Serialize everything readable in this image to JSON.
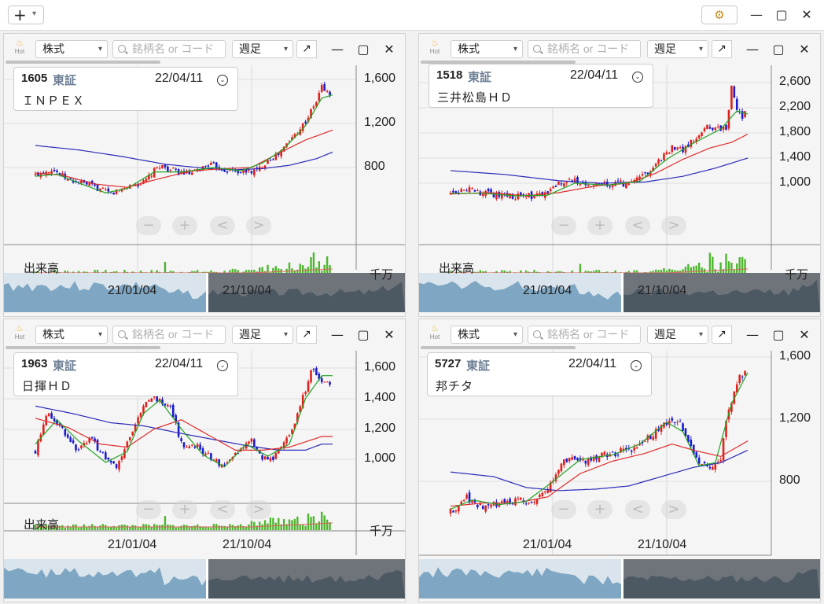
{
  "toolbar": {
    "add_label": "+",
    "window_controls": [
      "minimize-icon",
      "maximize-icon",
      "close-icon"
    ]
  },
  "colors": {
    "up": "#e0201c",
    "down": "#1a1ad0",
    "ma_short": "#22a322",
    "ma_mid": "#e02c2c",
    "ma_long": "#2b2bb8",
    "volume": "#4db62e",
    "minimap_left": "#7fa6c2",
    "minimap_right": "#4c5862"
  },
  "panels": [
    {
      "code": "1605",
      "exchange": "東証",
      "date": "22/04/11",
      "name": "ＩＮＰＥＸ",
      "market": "株式",
      "search_placeholder": "銘柄名 or コード",
      "period": "週足",
      "hot_label": "Hot",
      "y_ticks": [
        "1,600",
        "1,200",
        "800"
      ],
      "x_ticks": [
        "21/01/04",
        "21/10/04"
      ],
      "volume_label": "出来高",
      "volume_unit": "千万",
      "nav": [
        "−",
        "+",
        "<",
        ">"
      ]
    },
    {
      "code": "1518",
      "exchange": "東証",
      "date": "22/04/11",
      "name": "三井松島ＨＤ",
      "market": "株式",
      "search_placeholder": "銘柄名 or コード",
      "period": "週足",
      "hot_label": "Hot",
      "y_ticks": [
        "2,600",
        "2,200",
        "1,800",
        "1,400",
        "1,000"
      ],
      "x_ticks": [
        "21/01/04",
        "21/10/04"
      ],
      "volume_label": "出来高",
      "volume_unit": "千万",
      "nav": [
        "−",
        "+",
        "<",
        ">"
      ]
    },
    {
      "code": "1963",
      "exchange": "東証",
      "date": "22/04/11",
      "name": "日揮ＨＤ",
      "market": "株式",
      "search_placeholder": "銘柄名 or コード",
      "period": "週足",
      "hot_label": "Hot",
      "y_ticks": [
        "1,600",
        "1,400",
        "1,200",
        "1,000"
      ],
      "x_ticks": [
        "21/01/04",
        "21/10/04"
      ],
      "volume_label": "出来高",
      "volume_unit": "千万",
      "nav": [
        "−",
        "+",
        "<",
        ">"
      ]
    },
    {
      "code": "5727",
      "exchange": "東証",
      "date": "22/04/11",
      "name": "邦チタ",
      "market": "株式",
      "search_placeholder": "銘柄名 or コード",
      "period": "週足",
      "hot_label": "Hot",
      "y_ticks": [
        "1,600",
        "1,200",
        "800"
      ],
      "x_ticks": [
        "21/01/04",
        "21/10/04"
      ],
      "volume_label": "",
      "volume_unit": "",
      "nav": [
        "−",
        "+",
        "<",
        ">"
      ]
    }
  ],
  "chart_data": [
    {
      "type": "candlestick",
      "title": "1605 ＩＮＰＥＸ",
      "ylim": [
        500,
        1680
      ],
      "y_ticks": [
        800,
        1200,
        1600
      ],
      "x_ticks": [
        "21/01/04",
        "21/10/04"
      ],
      "close_path": [
        [
          0,
          730
        ],
        [
          6,
          790
        ],
        [
          12,
          690
        ],
        [
          20,
          640
        ],
        [
          28,
          560
        ],
        [
          34,
          630
        ],
        [
          40,
          660
        ],
        [
          46,
          820
        ],
        [
          52,
          760
        ],
        [
          58,
          740
        ],
        [
          64,
          830
        ],
        [
          70,
          780
        ],
        [
          76,
          760
        ],
        [
          82,
          770
        ],
        [
          86,
          870
        ],
        [
          90,
          920
        ],
        [
          95,
          1070
        ],
        [
          100,
          1220
        ],
        [
          104,
          1400
        ],
        [
          106,
          1540
        ],
        [
          108,
          1480
        ],
        [
          110,
          1450
        ]
      ],
      "ma_short_path": [
        [
          0,
          720
        ],
        [
          8,
          740
        ],
        [
          16,
          660
        ],
        [
          26,
          570
        ],
        [
          34,
          610
        ],
        [
          44,
          760
        ],
        [
          54,
          760
        ],
        [
          66,
          800
        ],
        [
          76,
          770
        ],
        [
          84,
          840
        ],
        [
          92,
          970
        ],
        [
          100,
          1180
        ],
        [
          106,
          1430
        ],
        [
          110,
          1460
        ]
      ],
      "ma_mid_path": [
        [
          0,
          750
        ],
        [
          10,
          730
        ],
        [
          22,
          650
        ],
        [
          34,
          620
        ],
        [
          46,
          700
        ],
        [
          58,
          770
        ],
        [
          70,
          790
        ],
        [
          80,
          800
        ],
        [
          90,
          930
        ],
        [
          100,
          1050
        ],
        [
          110,
          1140
        ]
      ],
      "ma_long_path": [
        [
          0,
          1000
        ],
        [
          16,
          960
        ],
        [
          32,
          900
        ],
        [
          48,
          830
        ],
        [
          64,
          790
        ],
        [
          74,
          780
        ],
        [
          84,
          790
        ],
        [
          94,
          820
        ],
        [
          104,
          880
        ],
        [
          110,
          940
        ]
      ],
      "volume_shape": "rising",
      "minimap": true
    },
    {
      "type": "candlestick",
      "title": "1518 三井松島ＨＤ",
      "ylim": [
        500,
        2800
      ],
      "y_ticks": [
        1000,
        1400,
        1800,
        2200,
        2600
      ],
      "x_ticks": [
        "21/01/04",
        "21/10/04"
      ],
      "close_path": [
        [
          0,
          850
        ],
        [
          6,
          900
        ],
        [
          12,
          830
        ],
        [
          20,
          800
        ],
        [
          28,
          790
        ],
        [
          36,
          820
        ],
        [
          40,
          1000
        ],
        [
          46,
          1030
        ],
        [
          52,
          960
        ],
        [
          58,
          980
        ],
        [
          64,
          1000
        ],
        [
          70,
          1060
        ],
        [
          74,
          1240
        ],
        [
          78,
          1400
        ],
        [
          82,
          1580
        ],
        [
          86,
          1500
        ],
        [
          90,
          1700
        ],
        [
          94,
          1900
        ],
        [
          98,
          1850
        ],
        [
          102,
          1900
        ],
        [
          104,
          2500
        ],
        [
          106,
          2200
        ],
        [
          108,
          2050
        ],
        [
          110,
          2180
        ]
      ],
      "ma_short_path": [
        [
          0,
          840
        ],
        [
          12,
          840
        ],
        [
          24,
          800
        ],
        [
          36,
          810
        ],
        [
          46,
          1000
        ],
        [
          58,
          970
        ],
        [
          70,
          1030
        ],
        [
          80,
          1380
        ],
        [
          90,
          1640
        ],
        [
          100,
          1860
        ],
        [
          106,
          2150
        ],
        [
          110,
          2100
        ]
      ],
      "ma_mid_path": [
        [
          0,
          830
        ],
        [
          14,
          850
        ],
        [
          28,
          800
        ],
        [
          40,
          850
        ],
        [
          54,
          960
        ],
        [
          66,
          1000
        ],
        [
          76,
          1160
        ],
        [
          86,
          1380
        ],
        [
          96,
          1560
        ],
        [
          104,
          1650
        ],
        [
          110,
          1780
        ]
      ],
      "ma_long_path": [
        [
          0,
          1200
        ],
        [
          20,
          1140
        ],
        [
          40,
          1040
        ],
        [
          56,
          1000
        ],
        [
          72,
          1020
        ],
        [
          86,
          1110
        ],
        [
          98,
          1240
        ],
        [
          110,
          1400
        ]
      ],
      "volume_shape": "spiky_right",
      "minimap": true
    },
    {
      "type": "candlestick",
      "title": "1963 日揮ＨＤ",
      "ylim": [
        800,
        1680
      ],
      "y_ticks": [
        1000,
        1200,
        1400,
        1600
      ],
      "x_ticks": [
        "21/01/04",
        "21/10/04"
      ],
      "close_path": [
        [
          0,
          1050
        ],
        [
          4,
          1300
        ],
        [
          10,
          1200
        ],
        [
          16,
          1050
        ],
        [
          20,
          1140
        ],
        [
          26,
          1010
        ],
        [
          30,
          950
        ],
        [
          36,
          1200
        ],
        [
          40,
          1350
        ],
        [
          44,
          1400
        ],
        [
          50,
          1360
        ],
        [
          54,
          1100
        ],
        [
          60,
          1080
        ],
        [
          66,
          1000
        ],
        [
          70,
          950
        ],
        [
          74,
          1040
        ],
        [
          80,
          1120
        ],
        [
          84,
          1000
        ],
        [
          88,
          1000
        ],
        [
          92,
          1110
        ],
        [
          96,
          1240
        ],
        [
          100,
          1460
        ],
        [
          102,
          1600
        ],
        [
          106,
          1500
        ]
      ],
      "ma_short_path": [
        [
          0,
          1100
        ],
        [
          8,
          1260
        ],
        [
          16,
          1120
        ],
        [
          26,
          980
        ],
        [
          34,
          1050
        ],
        [
          40,
          1300
        ],
        [
          46,
          1390
        ],
        [
          54,
          1200
        ],
        [
          62,
          1030
        ],
        [
          70,
          950
        ],
        [
          78,
          1100
        ],
        [
          86,
          1020
        ],
        [
          94,
          1100
        ],
        [
          100,
          1400
        ],
        [
          106,
          1550
        ]
      ],
      "ma_mid_path": [
        [
          0,
          1270
        ],
        [
          12,
          1210
        ],
        [
          24,
          1100
        ],
        [
          34,
          1080
        ],
        [
          44,
          1200
        ],
        [
          54,
          1260
        ],
        [
          64,
          1160
        ],
        [
          74,
          1060
        ],
        [
          84,
          1060
        ],
        [
          94,
          1080
        ],
        [
          106,
          1150
        ]
      ],
      "ma_long_path": [
        [
          0,
          1350
        ],
        [
          14,
          1300
        ],
        [
          28,
          1240
        ],
        [
          40,
          1220
        ],
        [
          54,
          1170
        ],
        [
          66,
          1130
        ],
        [
          78,
          1090
        ],
        [
          90,
          1060
        ],
        [
          100,
          1060
        ],
        [
          106,
          1100
        ]
      ],
      "volume_shape": "spiky_right",
      "minimap": true
    },
    {
      "type": "candlestick",
      "title": "5727 邦チタ",
      "ylim": [
        560,
        1680
      ],
      "y_ticks": [
        800,
        1200,
        1600
      ],
      "x_ticks": [
        "21/01/04",
        "21/10/04"
      ],
      "close_path": [
        [
          0,
          600
        ],
        [
          6,
          700
        ],
        [
          10,
          630
        ],
        [
          16,
          660
        ],
        [
          24,
          680
        ],
        [
          30,
          660
        ],
        [
          36,
          750
        ],
        [
          42,
          950
        ],
        [
          48,
          920
        ],
        [
          54,
          960
        ],
        [
          60,
          980
        ],
        [
          66,
          1000
        ],
        [
          72,
          1060
        ],
        [
          78,
          1160
        ],
        [
          84,
          1200
        ],
        [
          88,
          1050
        ],
        [
          92,
          890
        ],
        [
          96,
          900
        ],
        [
          100,
          960
        ],
        [
          102,
          1200
        ],
        [
          106,
          1440
        ],
        [
          110,
          1520
        ]
      ],
      "ma_short_path": [
        [
          0,
          620
        ],
        [
          8,
          680
        ],
        [
          18,
          650
        ],
        [
          28,
          670
        ],
        [
          38,
          800
        ],
        [
          48,
          940
        ],
        [
          60,
          970
        ],
        [
          70,
          1040
        ],
        [
          80,
          1180
        ],
        [
          86,
          1120
        ],
        [
          92,
          900
        ],
        [
          98,
          920
        ],
        [
          104,
          1300
        ],
        [
          110,
          1500
        ]
      ],
      "ma_mid_path": [
        [
          0,
          640
        ],
        [
          12,
          660
        ],
        [
          24,
          660
        ],
        [
          36,
          700
        ],
        [
          48,
          850
        ],
        [
          60,
          930
        ],
        [
          72,
          980
        ],
        [
          82,
          1040
        ],
        [
          90,
          1000
        ],
        [
          100,
          960
        ],
        [
          110,
          1060
        ]
      ],
      "ma_long_path": [
        [
          0,
          860
        ],
        [
          16,
          830
        ],
        [
          28,
          760
        ],
        [
          40,
          740
        ],
        [
          54,
          750
        ],
        [
          66,
          770
        ],
        [
          78,
          830
        ],
        [
          90,
          890
        ],
        [
          100,
          920
        ],
        [
          110,
          1000
        ]
      ],
      "volume_shape": "none",
      "minimap": true
    }
  ]
}
